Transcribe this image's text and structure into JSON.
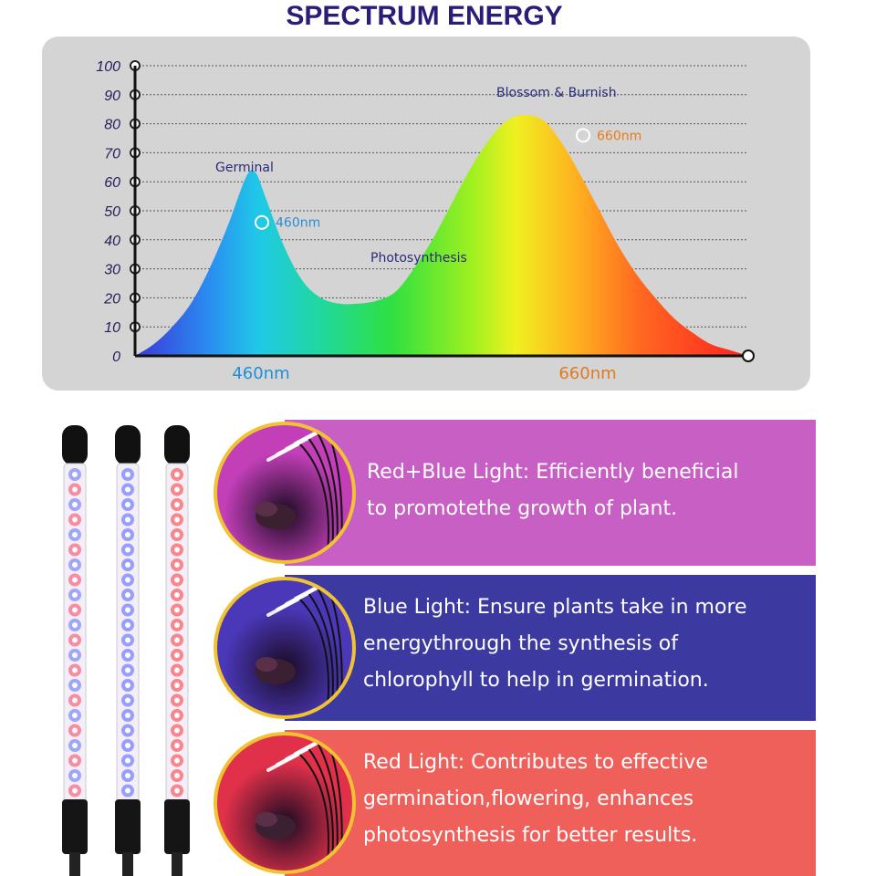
{
  "page_title": "SPECTRUM ENERGY",
  "chart_data": {
    "type": "area",
    "title": "SPECTRUM ENERGY",
    "xlabel": "",
    "ylabel": "",
    "ylim": [
      0,
      100
    ],
    "yticks": [
      0,
      10,
      20,
      30,
      40,
      50,
      60,
      70,
      80,
      90,
      100
    ],
    "grid": true,
    "x_labels": [
      "460nm",
      "660nm"
    ],
    "series": [
      {
        "x": [
          0,
          20,
          40,
          60,
          80,
          100,
          120,
          130,
          140,
          160,
          180,
          200,
          220,
          240,
          260,
          280,
          300,
          320,
          340,
          360,
          380,
          400,
          420,
          440,
          460,
          480,
          500,
          520,
          540,
          560,
          580,
          600,
          620,
          640,
          660
        ],
        "values": [
          0,
          4,
          10,
          18,
          30,
          45,
          62,
          63,
          55,
          38,
          26,
          20,
          18,
          18,
          19,
          22,
          30,
          40,
          52,
          64,
          74,
          81,
          83,
          81,
          73,
          62,
          50,
          38,
          28,
          20,
          13,
          8,
          4,
          2,
          0
        ]
      }
    ],
    "annotations": [
      {
        "text": "Germinal",
        "color": "#2a2a7a"
      },
      {
        "text": "460nm",
        "color": "#2a8cd0",
        "value": 46
      },
      {
        "text": "Photosynthesis",
        "color": "#2a2a7a"
      },
      {
        "text": "Blossom & Burnish",
        "color": "#2a2a7a"
      },
      {
        "text": "660nm",
        "color": "#e87a1c",
        "value": 76
      }
    ],
    "axis_label_colors": {
      "460nm": "#1f8fd8",
      "660nm": "#e07a20"
    }
  },
  "info_panels": [
    {
      "text": "Red+Blue Light: Efficiently beneficial\nto promotethe growth of plant.",
      "bg_color": "#c85fc4",
      "circle_color": "#c23fb8"
    },
    {
      "text": "Blue Light: Ensure plants take in more\nenergythrough the synthesis of\nchlorophyll to help in germination.",
      "bg_color": "#3c3aa0",
      "circle_color": "#4a38b8"
    },
    {
      "text": "Red Light: Contributes to effective\ngermination,flowering, enhances\nphotosynthesis for better results.",
      "bg_color": "#f0605a",
      "circle_color": "#e0304a"
    }
  ],
  "lamps": [
    {
      "name": "red-blue",
      "led_colors": [
        "#5a6cff",
        "#ff3c5a"
      ]
    },
    {
      "name": "blue",
      "led_colors": [
        "#4a5cff"
      ]
    },
    {
      "name": "red",
      "led_colors": [
        "#ff3030"
      ]
    }
  ]
}
